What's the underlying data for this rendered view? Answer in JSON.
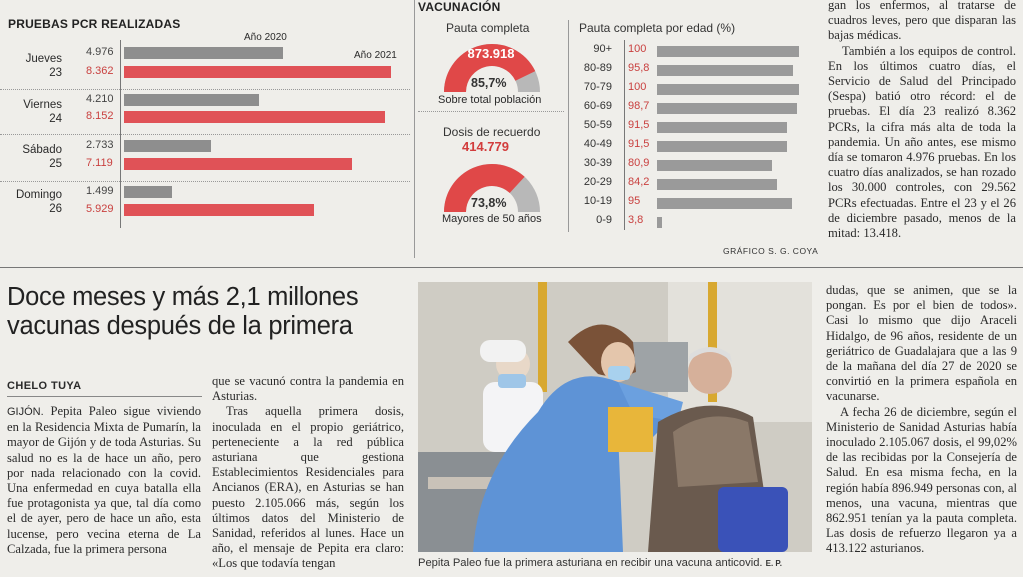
{
  "pcr": {
    "title": "PRUEBAS PCR REALIZADAS",
    "legend_2020": "Año 2020",
    "legend_2021": "Año 2021",
    "rows": [
      {
        "day1": "Jueves",
        "day2": "23",
        "v2020": "4.976",
        "v2021": "8.362"
      },
      {
        "day1": "Viernes",
        "day2": "24",
        "v2020": "4.210",
        "v2021": "8.152"
      },
      {
        "day1": "Sábado",
        "day2": "25",
        "v2020": "2.733",
        "v2021": "7.119"
      },
      {
        "day1": "Domingo",
        "day2": "26",
        "v2020": "1.499",
        "v2021": "5.929"
      }
    ]
  },
  "chart_data": {
    "type": "bar",
    "title": "PRUEBAS PCR REALIZADAS",
    "categories": [
      "Jueves 23",
      "Viernes 24",
      "Sábado 25",
      "Domingo 26"
    ],
    "series": [
      {
        "name": "Año 2020",
        "values": [
          4976,
          4210,
          2733,
          1499
        ]
      },
      {
        "name": "Año 2021",
        "values": [
          8362,
          8152,
          7119,
          5929
        ]
      }
    ],
    "max": 8600
  },
  "vac": {
    "title": "VACUNACIÓN",
    "pauta_title": "Pauta completa",
    "pauta_number": "873.918",
    "pauta_pct": "85,7%",
    "pauta_pct_value": 85.7,
    "pauta_caption": "Sobre total población",
    "dosis_title": "Dosis de recuerdo",
    "dosis_number": "414.779",
    "dosis_pct": "73,8%",
    "dosis_pct_value": 73.8,
    "dosis_caption": "Mayores de 50 años",
    "age_title": "Pauta completa por edad (%)",
    "ages": [
      {
        "label": "90+",
        "value": "100",
        "num": 100
      },
      {
        "label": "80-89",
        "value": "95,8",
        "num": 95.8
      },
      {
        "label": "70-79",
        "value": "100",
        "num": 100
      },
      {
        "label": "60-69",
        "value": "98,7",
        "num": 98.7
      },
      {
        "label": "50-59",
        "value": "91,5",
        "num": 91.5
      },
      {
        "label": "40-49",
        "value": "91,5",
        "num": 91.5
      },
      {
        "label": "30-39",
        "value": "80,9",
        "num": 80.9
      },
      {
        "label": "20-29",
        "value": "84,2",
        "num": 84.2
      },
      {
        "label": "10-19",
        "value": "95",
        "num": 95
      },
      {
        "label": "0-9",
        "value": "3,8",
        "num": 3.8
      }
    ],
    "credit": "GRÁFICO S. G. COYA"
  },
  "right_top": {
    "p1": "gan los enfermos, al tratarse de cuadros leves, pero que disparan las bajas médicas.",
    "p2": "También a los equipos de control. En los últimos cuatro días, el Servicio de Salud del Principado (Sespa) batió otro récord: el de pruebas. El día 23 realizó 8.362 PCRs, la cifra más alta de toda la pandemia. Un año antes, ese mismo día se tomaron 4.976 pruebas. En los cuatro días analizados, se han rozado los 30.000 controles, con 29.562 PCRs efectuadas. Entre el 23 y el 26 de diciembre pasado, menos de la mitad: 13.418."
  },
  "article": {
    "headline1": "Doce meses y más 2,1 millones",
    "headline2": "vacunas después de la primera",
    "author": "CHELO TUYA",
    "col1_lead": "GIJÓN.",
    "col1": " Pepita Paleo sigue viviendo en la Residencia Mixta de Pumarín, la mayor de Gijón y de toda Asturias. Su salud no es la de hace un año, pero por nada relacionado con la covid. Una enfermedad en cuya batalla ella fue protagonista ya que, tal día como el de ayer, pero de hace un año, esta lucense, pero vecina eterna de La Calzada, fue la primera persona",
    "col2_p1": "que se vacunó contra la pandemia en Asturias.",
    "col2_p2": "Tras aquella primera dosis, inoculada en el propio geriátrico, perteneciente a la red pública asturiana que gestiona Establecimientos Residenciales para Ancianos (ERA), en Asturias se han puesto 2.105.066 más, según los últimos datos del Ministerio de Sanidad, referidos al lunes. Hace un año, el mensaje de Pepita era claro: «Los que todavía tengan",
    "photo_caption": "Pepita Paleo fue la primera asturiana en recibir una vacuna anticovid.",
    "photo_credit": "E. P.",
    "col3_p1": "dudas, que se animen, que se la pongan. Es por el bien de todos». Casi lo mismo que dijo Araceli Hidalgo, de 96 años, residente de un geriátrico de Guadalajara que a las 9 de la mañana del día 27 de 2020 se convirtió en la primera española en vacunarse.",
    "col3_p2": "A fecha 26 de diciembre, según el Ministerio de Sanidad Asturias había inoculado 2.105.067 dosis, el 99,02% de las recibidas por la Consejería de Salud. En esa misma fecha, en la región había 896.949 personas con, al menos, una vacuna, mientras que 862.951 tenían ya la pauta completa. Las dosis de refuerzo llegaron ya a 413.122 asturianos."
  }
}
